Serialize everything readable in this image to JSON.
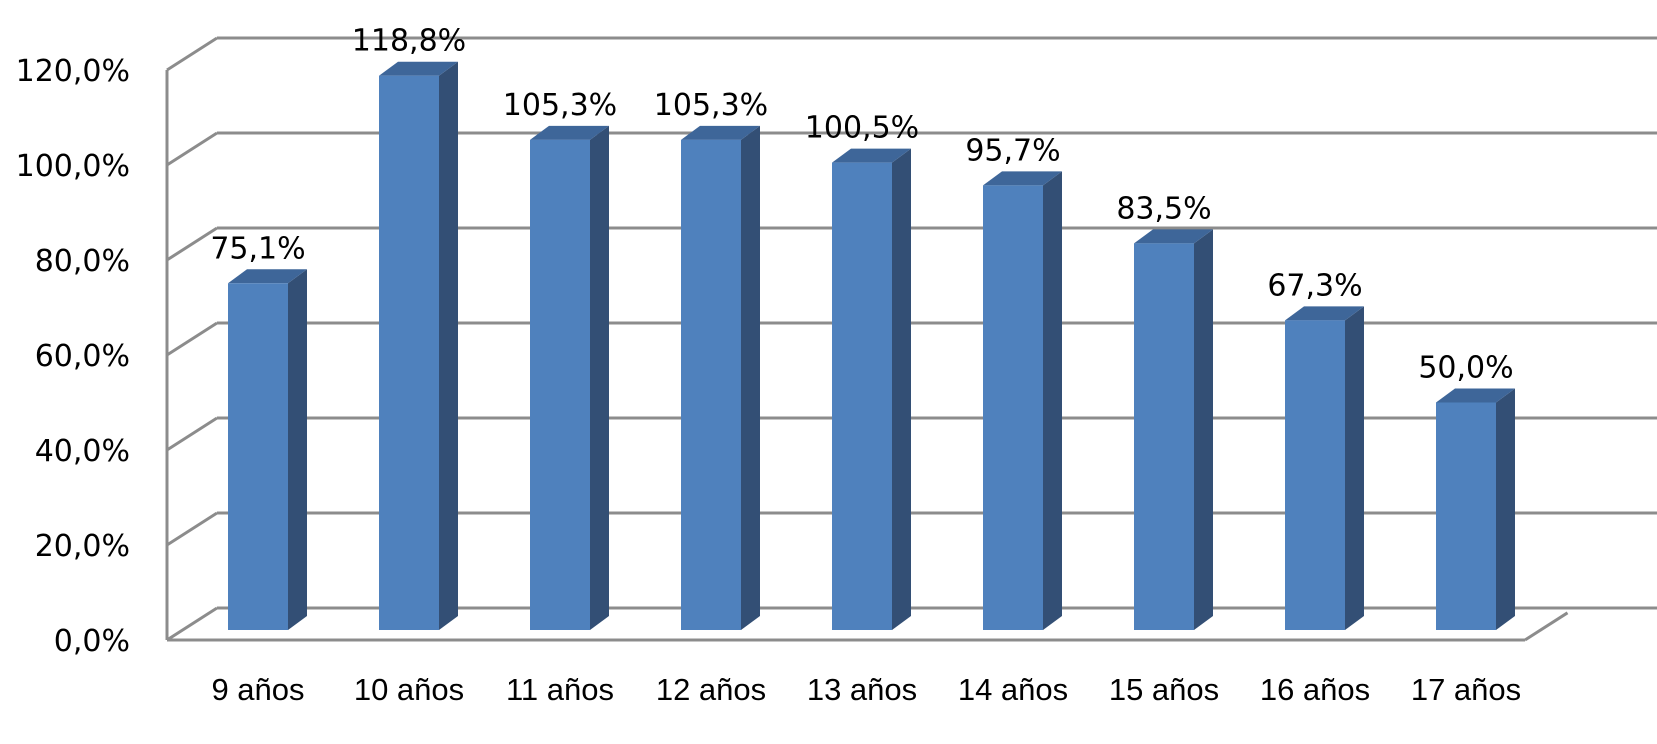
{
  "chart_data": {
    "type": "bar",
    "title": "",
    "xlabel": "",
    "ylabel": "",
    "categories": [
      "9 años",
      "10 años",
      "11 años",
      "12 años",
      "13 años",
      "14 años",
      "15 años",
      "16 años",
      "17 años"
    ],
    "values": [
      75.1,
      118.8,
      105.3,
      105.3,
      100.5,
      95.7,
      83.5,
      67.3,
      50.0
    ],
    "data_labels": [
      "75,1%",
      "118,8%",
      "105,3%",
      "105,3%",
      "100,5%",
      "95,7%",
      "83,5%",
      "67,3%",
      "50,0%"
    ],
    "y_ticks": [
      0,
      20,
      40,
      60,
      80,
      100,
      120
    ],
    "y_tick_labels": [
      "0,0%",
      "20,0%",
      "40,0%",
      "60,0%",
      "80,0%",
      "100,0%",
      "120,0%"
    ],
    "ylim": [
      0,
      120
    ],
    "grid": true,
    "legend": "none",
    "style": "3d-column",
    "colors": {
      "bar_front": "#4f81bd",
      "bar_side": "#334f75",
      "bar_top": "#3e6699",
      "grid": "#8c8c8c",
      "axis": "#8c8c8c"
    }
  }
}
